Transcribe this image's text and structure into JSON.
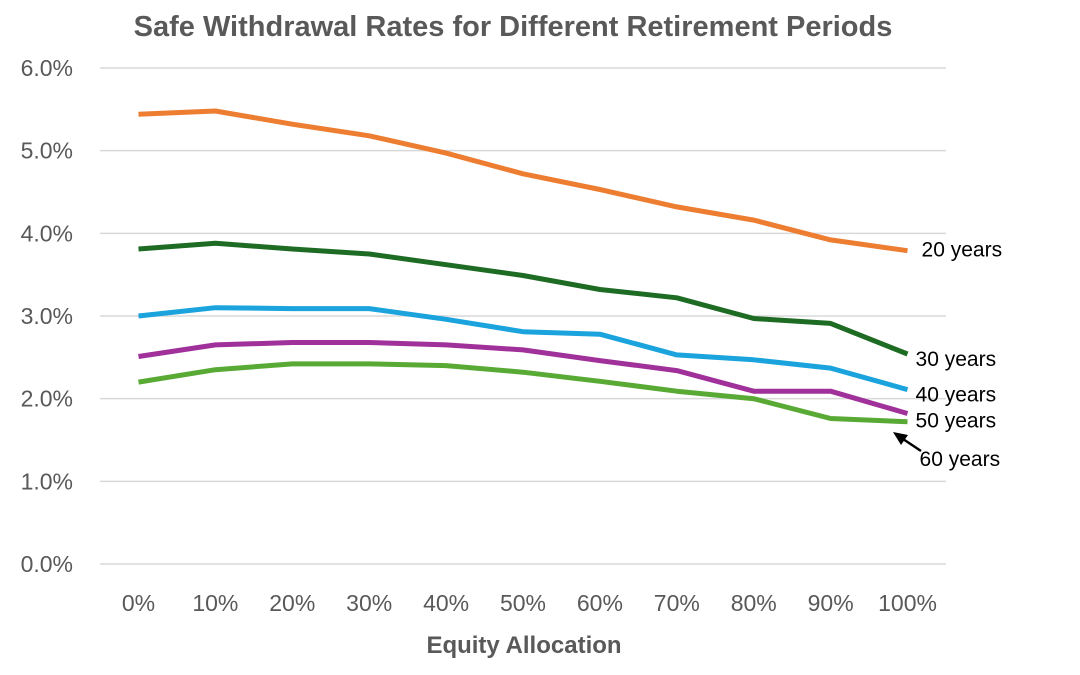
{
  "chart_data": {
    "type": "line",
    "title": "Safe Withdrawal Rates for Different Retirement Periods",
    "xlabel": "Equity Allocation",
    "ylabel": "",
    "categories": [
      "0%",
      "10%",
      "20%",
      "30%",
      "40%",
      "50%",
      "60%",
      "70%",
      "80%",
      "90%",
      "100%"
    ],
    "ylim": [
      0,
      0.06
    ],
    "yticks": [
      {
        "value": 0.0,
        "label": "0.0%"
      },
      {
        "value": 0.01,
        "label": "1.0%"
      },
      {
        "value": 0.02,
        "label": "2.0%"
      },
      {
        "value": 0.03,
        "label": "3.0%"
      },
      {
        "value": 0.04,
        "label": "4.0%"
      },
      {
        "value": 0.05,
        "label": "5.0%"
      },
      {
        "value": 0.06,
        "label": "6.0%"
      }
    ],
    "grid": true,
    "series": [
      {
        "name": "20 years",
        "color": "#ed7d31",
        "values": [
          0.0544,
          0.0548,
          0.0532,
          0.0518,
          0.0497,
          0.0472,
          0.0453,
          0.0432,
          0.0416,
          0.0392,
          0.0379
        ]
      },
      {
        "name": "30 years",
        "color": "#1e6b24",
        "values": [
          0.0381,
          0.0388,
          0.0381,
          0.0375,
          0.0362,
          0.0349,
          0.0332,
          0.0322,
          0.0297,
          0.0291,
          0.0254
        ]
      },
      {
        "name": "40 years",
        "color": "#1aa3dc",
        "values": [
          0.03,
          0.031,
          0.0309,
          0.0309,
          0.0296,
          0.0281,
          0.0278,
          0.0253,
          0.0247,
          0.0237,
          0.0211
        ]
      },
      {
        "name": "50 years",
        "color": "#a0309a",
        "values": [
          0.0251,
          0.0265,
          0.0268,
          0.0268,
          0.0265,
          0.0259,
          0.0246,
          0.0234,
          0.0209,
          0.0209,
          0.0182
        ]
      },
      {
        "name": "60 years",
        "color": "#58aa35",
        "values": [
          0.022,
          0.0235,
          0.0242,
          0.0242,
          0.024,
          0.0232,
          0.0221,
          0.0209,
          0.02,
          0.0176,
          0.0172
        ]
      }
    ]
  }
}
